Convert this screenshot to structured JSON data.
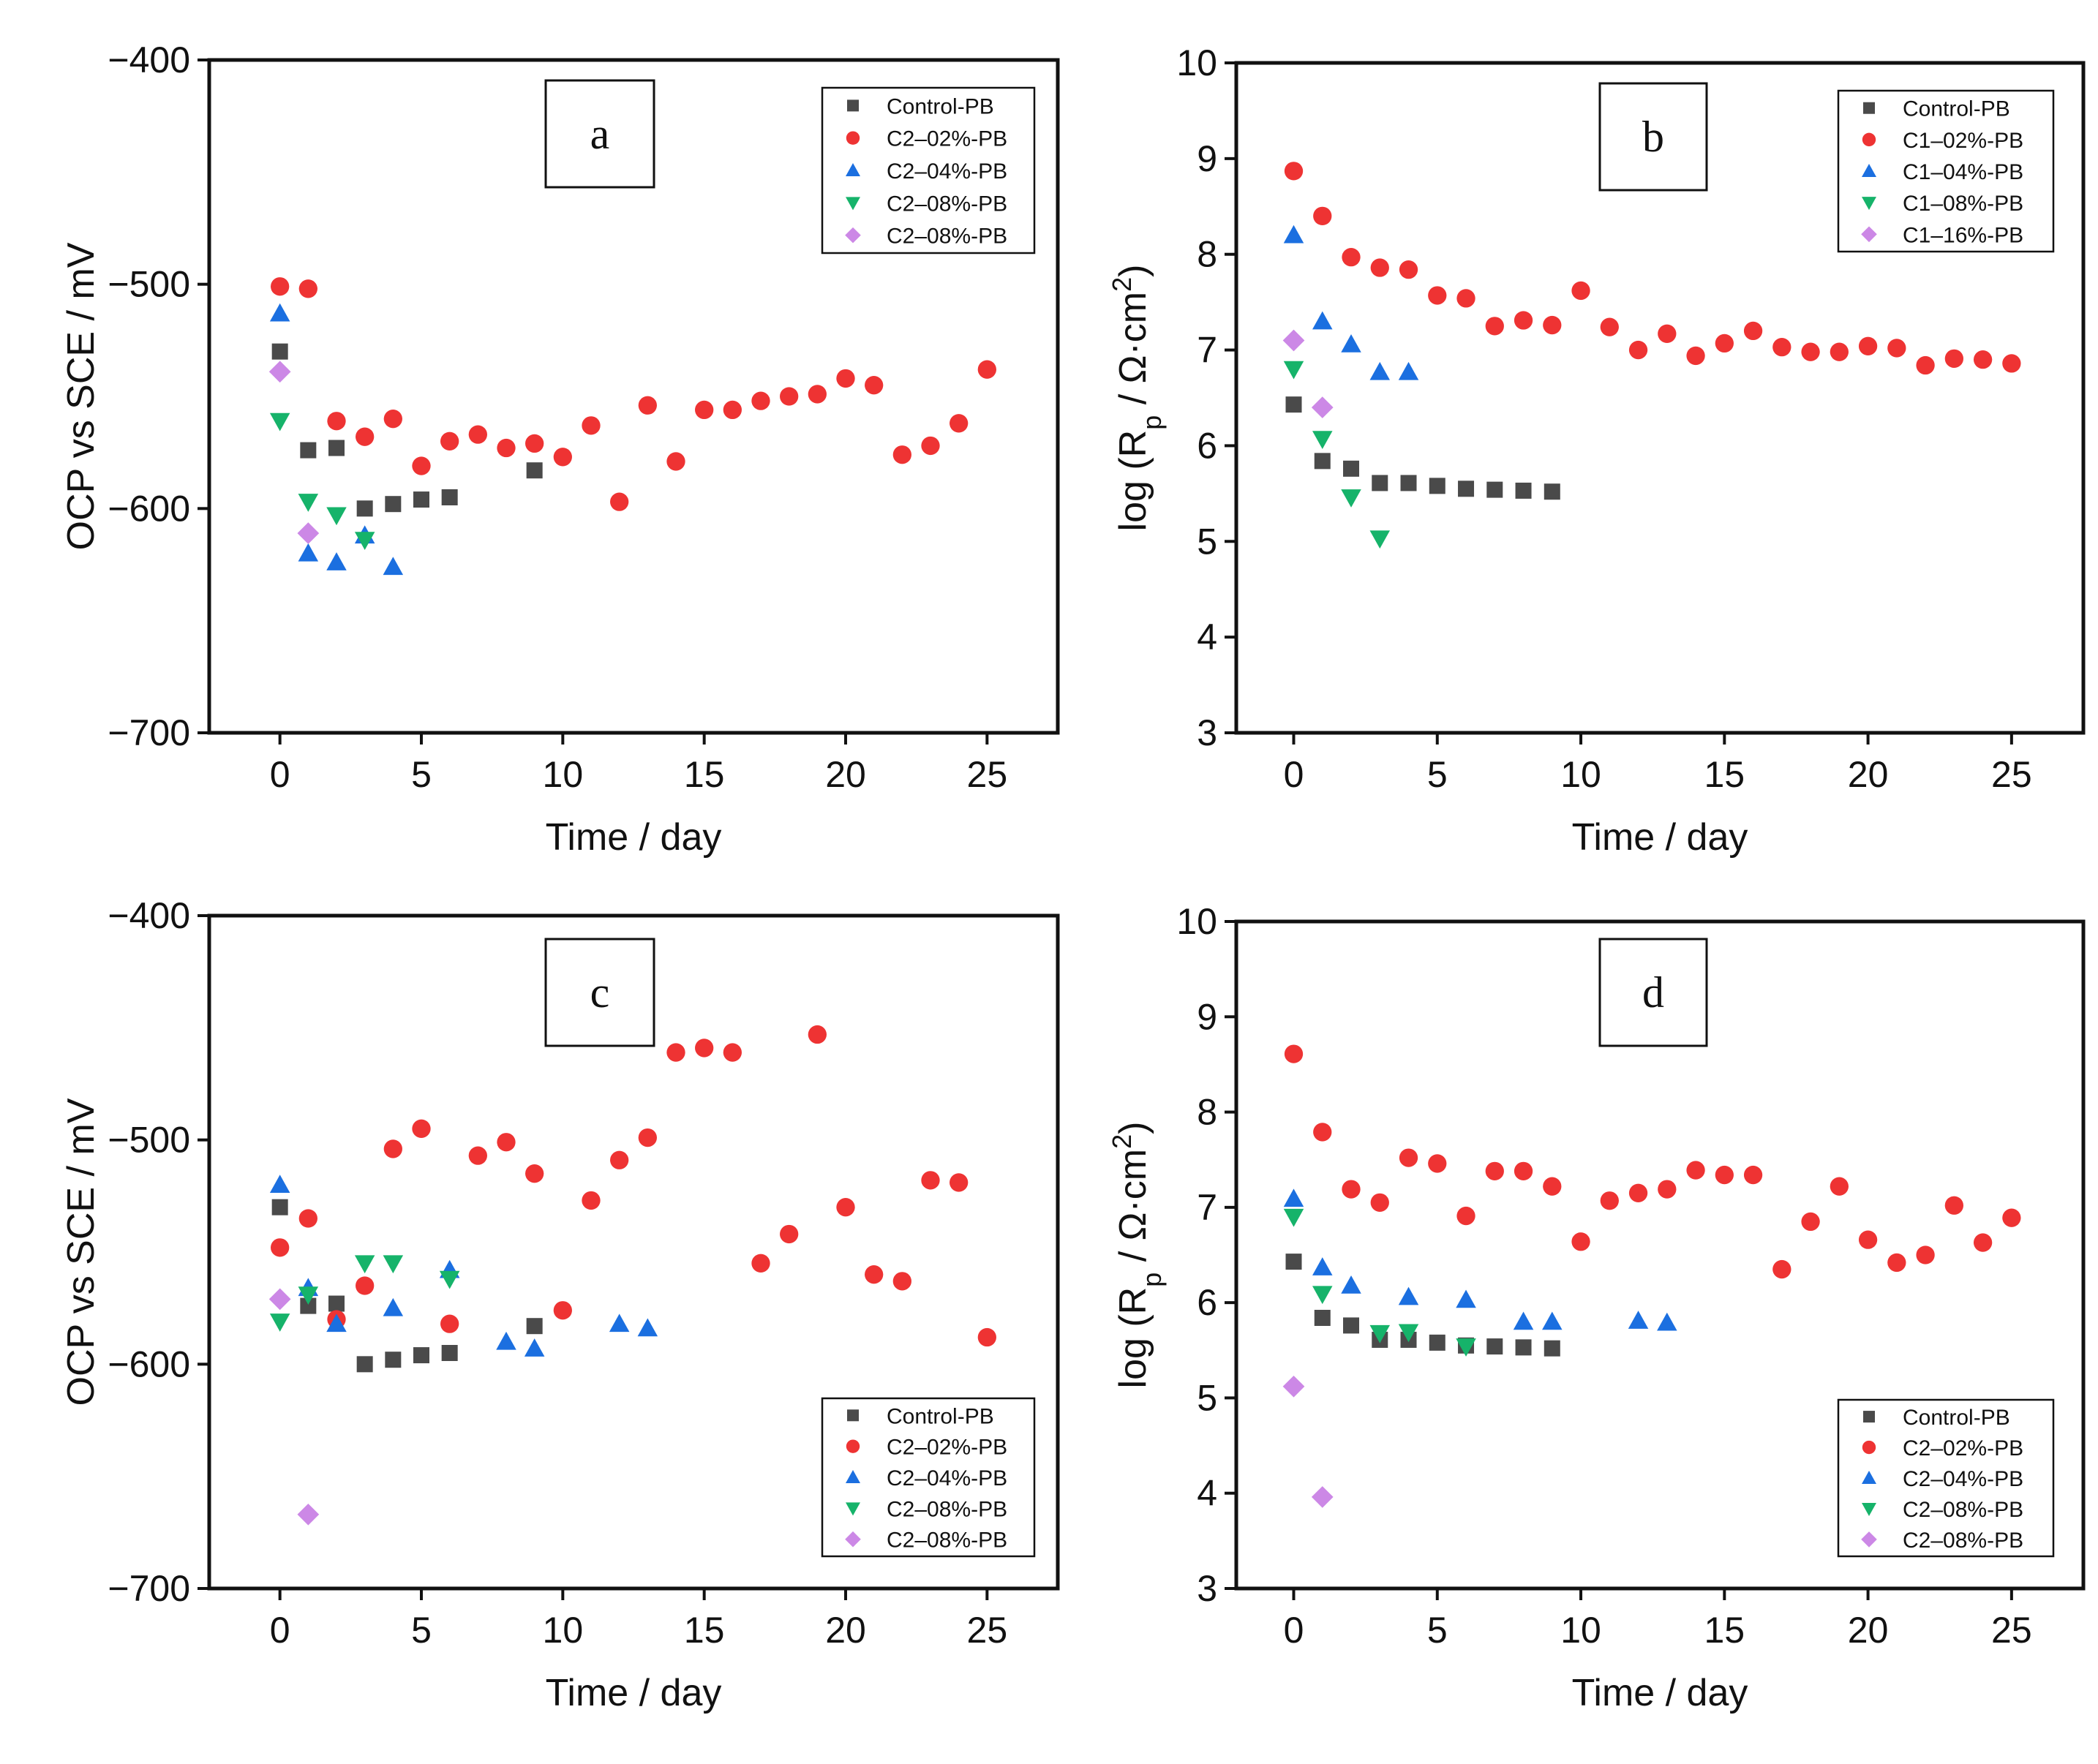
{
  "colors": {
    "Control-PB": "#4a4a4a",
    "02": "#ee3333",
    "04": "#1b6fe0",
    "08": "#16b36a",
    "16": "#cc88e6"
  },
  "chart_data": [
    {
      "type": "scatter",
      "panel_label": "a",
      "xlabel": "Time / day",
      "ylabel": "OCP vs SCE / mV",
      "xlim": [
        -2.5,
        27.5
      ],
      "ylim": [
        -700,
        -400
      ],
      "xticks": [
        0,
        5,
        10,
        15,
        20,
        25
      ],
      "yticks": [
        -700,
        -600,
        -500,
        -400
      ],
      "xtick_labels": [
        "0",
        "5",
        "10",
        "15",
        "20",
        "25"
      ],
      "ytick_labels": [
        "−700",
        "−600",
        "−500",
        "−400"
      ],
      "legend_position": "top-right",
      "series": [
        {
          "name": "Control-PB",
          "marker": "square",
          "color": "#4a4a4a",
          "x": [
            0,
            1,
            2,
            3,
            4,
            5,
            6,
            9
          ],
          "y": [
            -530,
            -574,
            -573,
            -600,
            -598,
            -596,
            -595,
            -583
          ]
        },
        {
          "name": "C2–02%-PB",
          "marker": "circle",
          "color": "#ee3333",
          "x": [
            0,
            1,
            2,
            3,
            4,
            5,
            6,
            7,
            8,
            9,
            10,
            11,
            12,
            13,
            14,
            15,
            16,
            17,
            18,
            19,
            20,
            21,
            22,
            23,
            24,
            25
          ],
          "y": [
            -501,
            -502,
            -561,
            -568,
            -560,
            -581,
            -570,
            -567,
            -573,
            -571,
            -577,
            -563,
            -597,
            -554,
            -579,
            -556,
            -556,
            -552,
            -550,
            -549,
            -542,
            -545,
            -576,
            -572,
            -562,
            -538
          ]
        },
        {
          "name": "C2–04%-PB",
          "marker": "triangle-up",
          "color": "#1b6fe0",
          "x": [
            0,
            1,
            2,
            3,
            4
          ],
          "y": [
            -513,
            -620,
            -624,
            -612,
            -626
          ]
        },
        {
          "name": "C2–08%-PB",
          "marker": "triangle-down",
          "color": "#16b36a",
          "x": [
            0,
            1,
            2,
            3
          ],
          "y": [
            -561,
            -597,
            -603,
            -614
          ]
        },
        {
          "name": "C2–08%-PB",
          "marker": "diamond",
          "color": "#cc88e6",
          "x": [
            0,
            1
          ],
          "y": [
            -539,
            -611
          ]
        }
      ]
    },
    {
      "type": "scatter",
      "panel_label": "b",
      "xlabel": "Time / day",
      "ylabel_text": "log (R",
      "ylabel_sub": "p",
      "ylabel_text2": " / Ω·cm",
      "ylabel_sup": "2",
      "ylabel_end": ")",
      "xlim": [
        -2,
        27.5
      ],
      "ylim": [
        3,
        10
      ],
      "xticks": [
        0,
        5,
        10,
        15,
        20,
        25
      ],
      "yticks": [
        3,
        4,
        5,
        6,
        7,
        8,
        9,
        10
      ],
      "xtick_labels": [
        "0",
        "5",
        "10",
        "15",
        "20",
        "25"
      ],
      "ytick_labels": [
        "3",
        "4",
        "5",
        "6",
        "7",
        "8",
        "9",
        "10"
      ],
      "legend_position": "top-right",
      "series": [
        {
          "name": "Control-PB",
          "marker": "square",
          "color": "#4a4a4a",
          "x": [
            0,
            1,
            2,
            3,
            4,
            5,
            6,
            7,
            8,
            9
          ],
          "y": [
            6.43,
            5.84,
            5.76,
            5.61,
            5.61,
            5.58,
            5.55,
            5.54,
            5.53,
            5.52
          ]
        },
        {
          "name": "C1–02%-PB",
          "marker": "circle",
          "color": "#ee3333",
          "x": [
            0,
            1,
            2,
            3,
            4,
            5,
            6,
            7,
            8,
            9,
            10,
            11,
            12,
            13,
            14,
            15,
            16,
            17,
            18,
            19,
            20,
            21,
            22,
            23,
            24,
            25
          ],
          "y": [
            8.87,
            8.4,
            7.97,
            7.86,
            7.84,
            7.57,
            7.54,
            7.25,
            7.31,
            7.26,
            7.62,
            7.24,
            7.0,
            7.17,
            6.94,
            7.07,
            7.2,
            7.03,
            6.98,
            6.98,
            7.04,
            7.02,
            6.84,
            6.91,
            6.9,
            6.86
          ]
        },
        {
          "name": "C1–04%-PB",
          "marker": "triangle-up",
          "color": "#1b6fe0",
          "x": [
            0,
            1,
            2,
            3,
            4
          ],
          "y": [
            8.2,
            7.3,
            7.06,
            6.77,
            6.77
          ]
        },
        {
          "name": "C1–08%-PB",
          "marker": "triangle-down",
          "color": "#16b36a",
          "x": [
            0,
            1,
            2,
            3
          ],
          "y": [
            6.8,
            6.07,
            5.46,
            5.03
          ]
        },
        {
          "name": "C1–16%-PB",
          "marker": "diamond",
          "color": "#cc88e6",
          "x": [
            0,
            1
          ],
          "y": [
            7.1,
            6.4
          ]
        }
      ]
    },
    {
      "type": "scatter",
      "panel_label": "c",
      "xlabel": "Time / day",
      "ylabel": "OCP vs SCE / mV",
      "xlim": [
        -2.5,
        27.5
      ],
      "ylim": [
        -700,
        -400
      ],
      "xticks": [
        0,
        5,
        10,
        15,
        20,
        25
      ],
      "yticks": [
        -700,
        -600,
        -500,
        -400
      ],
      "xtick_labels": [
        "0",
        "5",
        "10",
        "15",
        "20",
        "25"
      ],
      "ytick_labels": [
        "−700",
        "−600",
        "−500",
        "−400"
      ],
      "legend_position": "bottom-right",
      "series": [
        {
          "name": "Control-PB",
          "marker": "square",
          "color": "#4a4a4a",
          "x": [
            0,
            1,
            2,
            3,
            4,
            5,
            6,
            9
          ],
          "y": [
            -530,
            -574,
            -573,
            -600,
            -598,
            -596,
            -595,
            -583
          ]
        },
        {
          "name": "C2–02%-PB",
          "marker": "circle",
          "color": "#ee3333",
          "x": [
            0,
            1,
            2,
            3,
            4,
            5,
            6,
            7,
            8,
            9,
            10,
            11,
            12,
            13,
            14,
            15,
            16,
            17,
            18,
            19,
            20,
            21,
            22,
            23,
            24,
            25
          ],
          "y": [
            -548,
            -535,
            -580,
            -565,
            -504,
            -495,
            -582,
            -507,
            -501,
            -515,
            -576,
            -527,
            -509,
            -499,
            -461,
            -459,
            -461,
            -555,
            -542,
            -453,
            -530,
            -560,
            -563,
            -518,
            -519,
            -588
          ]
        },
        {
          "name": "C2–04%-PB",
          "marker": "triangle-up",
          "color": "#1b6fe0",
          "x": [
            0,
            1,
            2,
            4,
            6,
            8,
            9,
            12,
            13
          ],
          "y": [
            -520,
            -566,
            -582,
            -575,
            -558,
            -590,
            -593,
            -582,
            -584
          ]
        },
        {
          "name": "C2–08%-PB",
          "marker": "triangle-down",
          "color": "#16b36a",
          "x": [
            0,
            1,
            3,
            4,
            6
          ],
          "y": [
            -581,
            -569,
            -555,
            -555,
            -562
          ]
        },
        {
          "name": "C2–08%-PB",
          "marker": "diamond",
          "color": "#cc88e6",
          "x": [
            0,
            1
          ],
          "y": [
            -571,
            -667
          ]
        }
      ]
    },
    {
      "type": "scatter",
      "panel_label": "d",
      "xlabel": "Time / day",
      "ylabel_text": "log (R",
      "ylabel_sub": "p",
      "ylabel_text2": " / Ω·cm",
      "ylabel_sup": "2",
      "ylabel_end": ")",
      "xlim": [
        -2,
        27.5
      ],
      "ylim": [
        3,
        10
      ],
      "xticks": [
        0,
        5,
        10,
        15,
        20,
        25
      ],
      "yticks": [
        3,
        4,
        5,
        6,
        7,
        8,
        9,
        10
      ],
      "xtick_labels": [
        "0",
        "5",
        "10",
        "15",
        "20",
        "25"
      ],
      "ytick_labels": [
        "3",
        "4",
        "5",
        "6",
        "7",
        "8",
        "9",
        "10"
      ],
      "legend_position": "bottom-right",
      "series": [
        {
          "name": "Control-PB",
          "marker": "square",
          "color": "#4a4a4a",
          "x": [
            0,
            1,
            2,
            3,
            4,
            5,
            6,
            7,
            8,
            9
          ],
          "y": [
            6.43,
            5.84,
            5.76,
            5.61,
            5.61,
            5.58,
            5.55,
            5.54,
            5.53,
            5.52
          ]
        },
        {
          "name": "C2–02%-PB",
          "marker": "circle",
          "color": "#ee3333",
          "x": [
            0,
            1,
            2,
            3,
            4,
            5,
            6,
            7,
            8,
            9,
            10,
            11,
            12,
            13,
            14,
            15,
            16,
            17,
            18,
            19,
            20,
            21,
            22,
            23,
            24,
            25
          ],
          "y": [
            8.61,
            7.79,
            7.19,
            7.05,
            7.52,
            7.46,
            6.91,
            7.38,
            7.38,
            7.22,
            6.64,
            7.07,
            7.15,
            7.19,
            7.39,
            7.34,
            7.34,
            6.35,
            6.85,
            7.22,
            6.66,
            6.42,
            6.5,
            7.02,
            6.63,
            6.89
          ]
        },
        {
          "name": "C2–04%-PB",
          "marker": "triangle-up",
          "color": "#1b6fe0",
          "x": [
            0,
            1,
            2,
            4,
            6,
            8,
            9,
            12,
            13
          ],
          "y": [
            7.09,
            6.37,
            6.18,
            6.06,
            6.03,
            5.8,
            5.8,
            5.81,
            5.79
          ]
        },
        {
          "name": "C2–08%-PB",
          "marker": "triangle-down",
          "color": "#16b36a",
          "x": [
            0,
            1,
            3,
            4,
            6
          ],
          "y": [
            6.9,
            6.09,
            5.68,
            5.69,
            5.54
          ]
        },
        {
          "name": "C2–08%-PB",
          "marker": "diamond",
          "color": "#cc88e6",
          "x": [
            0,
            1
          ],
          "y": [
            5.12,
            3.96
          ]
        }
      ]
    }
  ]
}
